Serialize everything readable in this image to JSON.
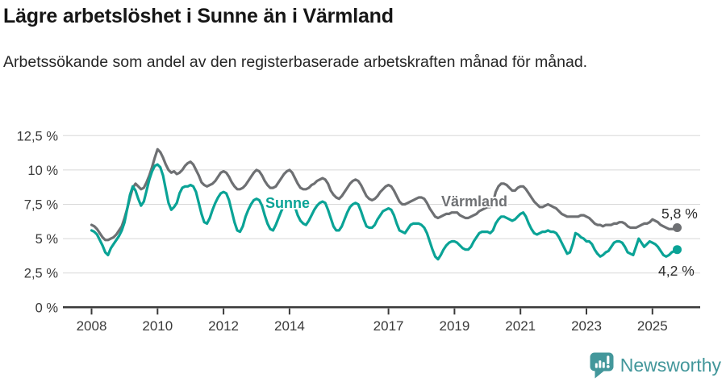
{
  "header": {
    "title": "Lägre arbetslöshet i Sunne än i Värmland",
    "subtitle": "Arbetssökande som andel av den registerbaserade arbetskraften månad för månad."
  },
  "chart_data": {
    "type": "line",
    "title": "Lägre arbetslöshet i Sunne än i Värmland",
    "subtitle": "Arbetssökande som andel av den registerbaserade arbetskraften månad för månad.",
    "unit": "percent of registered labour force",
    "frequency": "monthly",
    "x_start": "2008-01",
    "x_end": "2025-10",
    "x_tick_years": [
      2008,
      2010,
      2012,
      2014,
      2017,
      2019,
      2021,
      2023,
      2025
    ],
    "y_ticks": [
      0,
      2.5,
      5,
      7.5,
      10,
      12.5
    ],
    "y_tick_labels": [
      "0 %",
      "2,5 %",
      "5 %",
      "7,5 %",
      "10 %",
      "12,5 %"
    ],
    "ylim": [
      0,
      12.5
    ],
    "grid": "horizontal",
    "legend_position": "inline-labels",
    "colors": {
      "sunne": "#0AA396",
      "varmland": "#6E7073",
      "grid": "#D8D8D8",
      "axis": "#3A3A3A",
      "value_label_text": "#2B2B2B"
    },
    "series": [
      {
        "name": "Värmland",
        "color": "#6E7073",
        "end_label": "5,8 %",
        "end_value": 5.8,
        "values": [
          6.0,
          5.9,
          5.7,
          5.4,
          5.1,
          4.9,
          4.9,
          5.0,
          5.1,
          5.3,
          5.6,
          5.9,
          6.5,
          7.2,
          8.0,
          8.7,
          9.0,
          8.8,
          8.6,
          8.7,
          9.1,
          9.6,
          10.2,
          10.9,
          11.5,
          11.3,
          10.9,
          10.4,
          10.0,
          9.8,
          9.9,
          9.7,
          9.8,
          10.0,
          10.3,
          10.5,
          10.6,
          10.4,
          10.0,
          9.6,
          9.1,
          8.9,
          8.8,
          8.9,
          9.0,
          9.2,
          9.5,
          9.8,
          9.9,
          9.8,
          9.5,
          9.1,
          8.8,
          8.6,
          8.6,
          8.7,
          8.9,
          9.2,
          9.5,
          9.8,
          10.0,
          9.9,
          9.6,
          9.2,
          8.9,
          8.7,
          8.7,
          8.8,
          9.1,
          9.4,
          9.7,
          9.9,
          10.0,
          9.8,
          9.4,
          9.0,
          8.7,
          8.6,
          8.6,
          8.7,
          8.9,
          9.0,
          9.2,
          9.3,
          9.4,
          9.3,
          9.0,
          8.5,
          8.2,
          8.0,
          7.9,
          8.1,
          8.4,
          8.7,
          9.0,
          9.2,
          9.3,
          9.2,
          8.9,
          8.5,
          8.1,
          7.9,
          7.8,
          7.9,
          8.1,
          8.4,
          8.6,
          8.8,
          8.9,
          8.8,
          8.5,
          8.1,
          7.7,
          7.5,
          7.5,
          7.6,
          7.7,
          7.8,
          7.9,
          8.0,
          8.0,
          7.9,
          7.6,
          7.2,
          6.9,
          6.6,
          6.5,
          6.6,
          6.7,
          6.8,
          6.8,
          6.9,
          6.9,
          6.9,
          6.7,
          6.6,
          6.5,
          6.5,
          6.6,
          6.7,
          6.8,
          7.0,
          7.1,
          7.2,
          7.3,
          7.3,
          7.6,
          8.4,
          8.8,
          9.0,
          9.0,
          8.9,
          8.7,
          8.5,
          8.5,
          8.7,
          8.8,
          8.8,
          8.6,
          8.3,
          8.0,
          7.7,
          7.5,
          7.3,
          7.3,
          7.4,
          7.5,
          7.4,
          7.3,
          7.2,
          7.0,
          6.8,
          6.7,
          6.6,
          6.6,
          6.6,
          6.6,
          6.6,
          6.7,
          6.7,
          6.6,
          6.5,
          6.3,
          6.1,
          6.0,
          6.0,
          5.9,
          6.0,
          6.0,
          6.0,
          6.1,
          6.1,
          6.2,
          6.2,
          6.1,
          5.9,
          5.8,
          5.8,
          5.8,
          5.9,
          6.0,
          6.1,
          6.1,
          6.2,
          6.4,
          6.3,
          6.2,
          6.0,
          5.9,
          5.8,
          5.7,
          5.7,
          5.7,
          5.8
        ]
      },
      {
        "name": "Sunne",
        "color": "#0AA396",
        "end_label": "4,2 %",
        "end_value": 4.2,
        "values": [
          5.6,
          5.5,
          5.3,
          4.9,
          4.5,
          4.0,
          3.8,
          4.3,
          4.6,
          4.9,
          5.2,
          5.6,
          6.2,
          7.2,
          8.2,
          8.8,
          8.5,
          7.9,
          7.4,
          7.7,
          8.5,
          9.3,
          9.9,
          10.3,
          10.4,
          10.2,
          9.6,
          8.6,
          7.6,
          7.1,
          7.3,
          7.6,
          8.3,
          8.7,
          8.8,
          8.8,
          8.9,
          8.8,
          8.4,
          7.6,
          6.8,
          6.2,
          6.1,
          6.5,
          7.1,
          7.6,
          8.0,
          8.3,
          8.4,
          8.3,
          7.8,
          7.0,
          6.2,
          5.6,
          5.5,
          5.9,
          6.6,
          7.1,
          7.5,
          7.8,
          7.9,
          7.8,
          7.4,
          6.7,
          6.1,
          5.7,
          5.6,
          6.0,
          6.5,
          7.0,
          7.4,
          7.7,
          7.8,
          7.7,
          7.3,
          6.7,
          6.3,
          6.1,
          6.0,
          6.3,
          6.7,
          7.1,
          7.4,
          7.6,
          7.7,
          7.6,
          7.1,
          6.5,
          5.9,
          5.6,
          5.6,
          5.9,
          6.4,
          6.9,
          7.3,
          7.5,
          7.6,
          7.5,
          7.0,
          6.4,
          5.9,
          5.8,
          5.8,
          6.0,
          6.4,
          6.7,
          7.0,
          7.1,
          7.2,
          7.1,
          6.7,
          6.1,
          5.6,
          5.5,
          5.4,
          5.7,
          6.0,
          6.1,
          6.1,
          6.1,
          6.0,
          5.8,
          5.4,
          4.8,
          4.2,
          3.7,
          3.5,
          3.8,
          4.2,
          4.5,
          4.7,
          4.8,
          4.8,
          4.7,
          4.5,
          4.3,
          4.2,
          4.2,
          4.4,
          4.8,
          5.1,
          5.4,
          5.5,
          5.5,
          5.5,
          5.4,
          5.6,
          6.1,
          6.4,
          6.6,
          6.6,
          6.5,
          6.4,
          6.3,
          6.4,
          6.6,
          6.8,
          6.9,
          6.6,
          6.1,
          5.7,
          5.4,
          5.3,
          5.4,
          5.5,
          5.5,
          5.6,
          5.5,
          5.5,
          5.4,
          5.1,
          4.7,
          4.3,
          3.9,
          4.0,
          4.6,
          5.4,
          5.3,
          5.1,
          5.0,
          4.8,
          4.8,
          4.6,
          4.2,
          3.9,
          3.7,
          3.8,
          4.0,
          4.1,
          4.4,
          4.7,
          4.8,
          4.8,
          4.7,
          4.4,
          4.0,
          3.9,
          3.8,
          4.4,
          5.0,
          4.7,
          4.4,
          4.6,
          4.8,
          4.7,
          4.6,
          4.4,
          4.1,
          3.8,
          3.7,
          3.8,
          4.0,
          4.1,
          4.2
        ]
      }
    ]
  },
  "footer": {
    "brand": "Newsworthy",
    "brand_color": "#43979B"
  }
}
